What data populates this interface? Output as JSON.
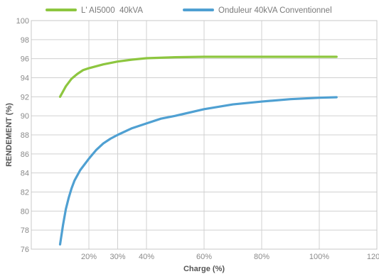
{
  "chart_data": {
    "type": "line",
    "title": "",
    "xlabel": "Charge (%)",
    "ylabel": "RENDEMENT (%)",
    "xlim": [
      0,
      120
    ],
    "ylim": [
      76,
      100
    ],
    "x_ticks": [
      {
        "value": 20,
        "label": "20%"
      },
      {
        "value": 30,
        "label": "30%"
      },
      {
        "value": 40,
        "label": "40%"
      },
      {
        "value": 60,
        "label": "60%"
      },
      {
        "value": 80,
        "label": "80%"
      },
      {
        "value": 100,
        "label": "100%"
      },
      {
        "value": 120,
        "label": "120%"
      }
    ],
    "y_ticks": [
      76,
      78,
      80,
      82,
      84,
      86,
      88,
      90,
      92,
      94,
      96,
      98,
      100
    ],
    "grid": true,
    "legend_position": "top",
    "series": [
      {
        "name": "L' AI5000  40kVA",
        "color": "#8dc63f",
        "x": [
          10,
          12,
          14,
          16,
          18,
          20,
          25,
          30,
          35,
          40,
          50,
          60,
          70,
          80,
          90,
          100,
          106
        ],
        "y": [
          92,
          93.1,
          93.9,
          94.4,
          94.8,
          95.0,
          95.4,
          95.7,
          95.9,
          96.05,
          96.15,
          96.2,
          96.2,
          96.2,
          96.2,
          96.2,
          96.2
        ]
      },
      {
        "name": "Onduleur 40kVA Conventionnel",
        "color": "#4fa0d2",
        "x": [
          10,
          11,
          12,
          13,
          14,
          15,
          17,
          20,
          22.5,
          25,
          27.5,
          30,
          35,
          40,
          45,
          50,
          60,
          70,
          80,
          90,
          100,
          106
        ],
        "y": [
          76.5,
          78.5,
          80.2,
          81.4,
          82.4,
          83.2,
          84.3,
          85.5,
          86.4,
          87.1,
          87.6,
          88.0,
          88.7,
          89.2,
          89.7,
          90.0,
          90.7,
          91.2,
          91.5,
          91.75,
          91.9,
          91.95
        ]
      }
    ]
  }
}
